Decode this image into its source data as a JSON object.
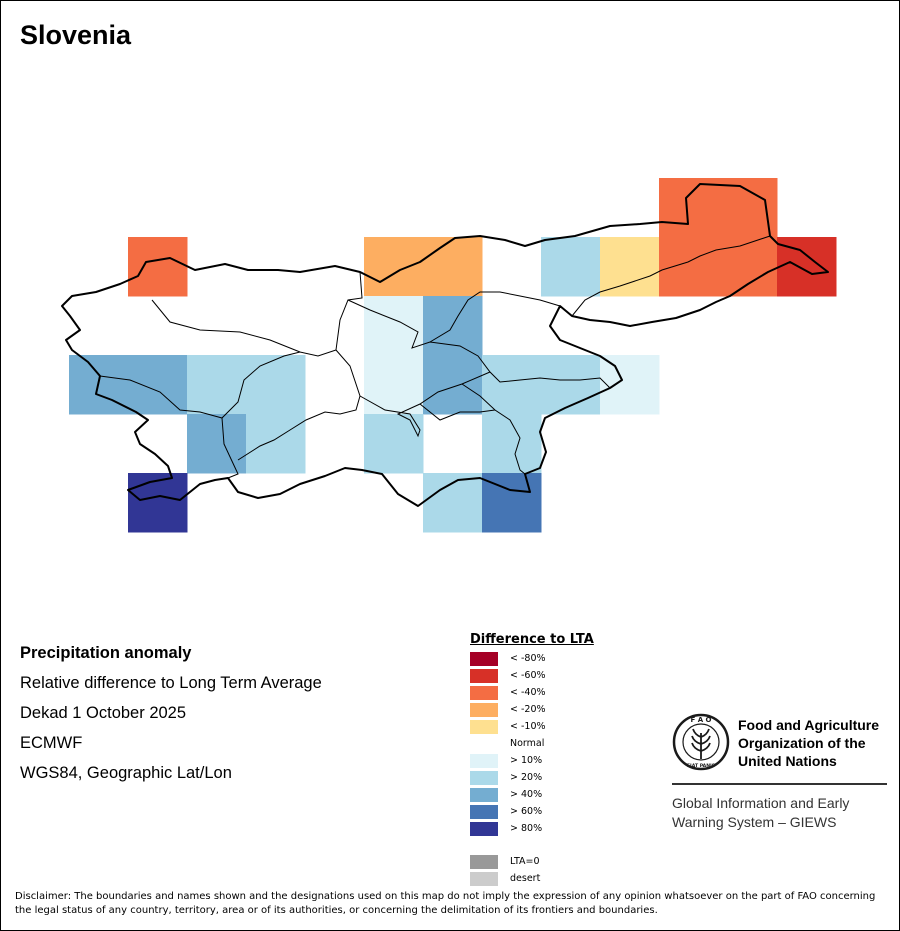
{
  "title": "Slovenia",
  "info": {
    "heading": "Precipitation anomaly",
    "line1": "Relative difference to Long Term Average",
    "line2": "Dekad 1 October 2025",
    "line3": "ECMWF",
    "line4": "WGS84, Geographic Lat/Lon"
  },
  "legend": {
    "title": "Difference to LTA",
    "dry": [
      {
        "label": "< -80%",
        "color": "#a50026"
      },
      {
        "label": "< -60%",
        "color": "#d73027"
      },
      {
        "label": "< -40%",
        "color": "#f46d43"
      },
      {
        "label": "< -20%",
        "color": "#fdae61"
      },
      {
        "label": "< -10%",
        "color": "#fee090"
      }
    ],
    "normal_label": "Normal",
    "wet": [
      {
        "label": "> 10%",
        "color": "#e0f3f8"
      },
      {
        "label": "> 20%",
        "color": "#abd9e9"
      },
      {
        "label": "> 40%",
        "color": "#74add1"
      },
      {
        "label": "> 60%",
        "color": "#4575b4"
      },
      {
        "label": "> 80%",
        "color": "#313695"
      }
    ],
    "extra": [
      {
        "label": "LTA=0",
        "color": "#999999"
      },
      {
        "label": "desert",
        "color": "#cccccc"
      }
    ]
  },
  "map": {
    "cells": [
      {
        "col": 1,
        "row": 1,
        "class": "< -40%"
      },
      {
        "col": 5,
        "row": 1,
        "class": "< -20%"
      },
      {
        "col": 6,
        "row": 1,
        "class": "< -20%"
      },
      {
        "col": 8,
        "row": 1,
        "class": "> 20%"
      },
      {
        "col": 9,
        "row": 1,
        "class": "< -10%"
      },
      {
        "col": 10,
        "row": 0,
        "class": "< -40%"
      },
      {
        "col": 11,
        "row": 0,
        "class": "< -40%"
      },
      {
        "col": 10,
        "row": 1,
        "class": "< -40%"
      },
      {
        "col": 11,
        "row": 1,
        "class": "< -40%"
      },
      {
        "col": 12,
        "row": 1,
        "class": "< -60%"
      },
      {
        "col": 5,
        "row": 2,
        "class": "> 10%"
      },
      {
        "col": 6,
        "row": 2,
        "class": "> 40%"
      },
      {
        "col": 0,
        "row": 3,
        "class": "> 40%"
      },
      {
        "col": 1,
        "row": 3,
        "class": "> 40%"
      },
      {
        "col": 2,
        "row": 3,
        "class": "> 20%"
      },
      {
        "col": 3,
        "row": 3,
        "class": "> 20%"
      },
      {
        "col": 5,
        "row": 3,
        "class": "> 10%"
      },
      {
        "col": 6,
        "row": 3,
        "class": "> 40%"
      },
      {
        "col": 7,
        "row": 3,
        "class": "> 20%"
      },
      {
        "col": 8,
        "row": 3,
        "class": "> 20%"
      },
      {
        "col": 9,
        "row": 3,
        "class": "> 10%"
      },
      {
        "col": 2,
        "row": 4,
        "class": "> 40%"
      },
      {
        "col": 3,
        "row": 4,
        "class": "> 20%"
      },
      {
        "col": 5,
        "row": 4,
        "class": "> 20%"
      },
      {
        "col": 7,
        "row": 4,
        "class": "> 20%"
      },
      {
        "col": 1,
        "row": 5,
        "class": "> 80%"
      },
      {
        "col": 6,
        "row": 5,
        "class": "> 20%"
      },
      {
        "col": 7,
        "row": 5,
        "class": "> 60%"
      }
    ]
  },
  "fao": {
    "name_line1": "Food and Agriculture",
    "name_line2": "Organization of the",
    "name_line3": "United Nations",
    "logo_top": "F A O",
    "logo_bottom": "FIAT PANIS",
    "giews_line1": "Global Information and Early",
    "giews_line2": "Warning System – GIEWS"
  },
  "disclaimer": "Disclaimer: The boundaries and names shown and the designations used on this map do not imply the expression of any opinion whatsoever on the part of FAO concerning the legal status of any country, territory, area or of its authorities, or concerning the delimitation of its frontiers and boundaries."
}
